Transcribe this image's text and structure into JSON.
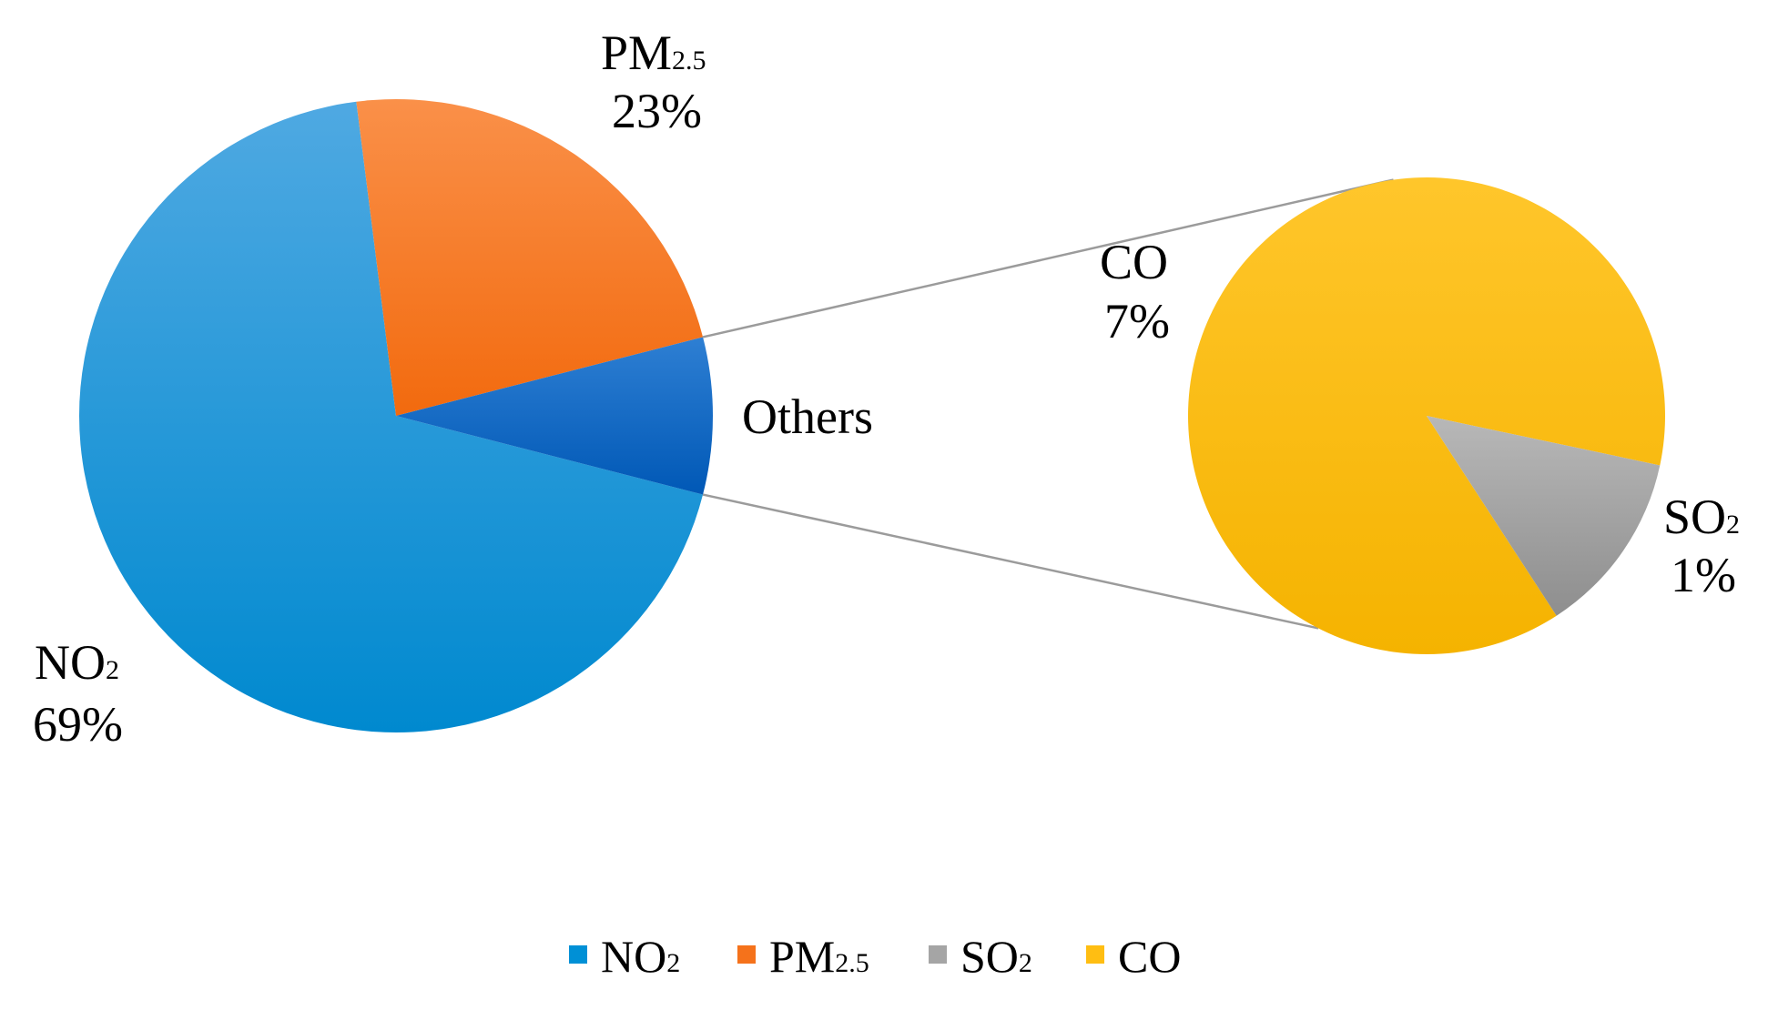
{
  "chart_data": {
    "type": "pie",
    "subtype": "pie-of-pie",
    "title": "",
    "main_pie": {
      "slices": [
        {
          "name": "NO2",
          "display": "NO",
          "sub": "2",
          "value": 69,
          "value_label": "69%",
          "color": "#0090D6"
        },
        {
          "name": "PM2.5",
          "display": "PM",
          "sub": "2.5",
          "value": 23,
          "value_label": "23%",
          "color": "#F5721B"
        },
        {
          "name": "Others",
          "display": "Others",
          "value": 8,
          "value_label": "",
          "color": "#0A6CC4"
        }
      ]
    },
    "secondary_pie": {
      "slices": [
        {
          "name": "CO",
          "display": "CO",
          "value": 7,
          "value_label": "7%",
          "color": "#FFBE12"
        },
        {
          "name": "SO2",
          "display": "SO",
          "sub": "2",
          "value": 1,
          "value_label": "1%",
          "color": "#A5A5A5"
        }
      ]
    },
    "legend": {
      "position": "bottom",
      "items": [
        {
          "display": "NO",
          "sub": "2",
          "color": "#0090D6"
        },
        {
          "display": "PM",
          "sub": "2.5",
          "color": "#F5721B"
        },
        {
          "display": "SO",
          "sub": "2",
          "color": "#A5A5A5"
        },
        {
          "display": "CO",
          "sub": "",
          "color": "#FFBE12"
        }
      ]
    }
  }
}
